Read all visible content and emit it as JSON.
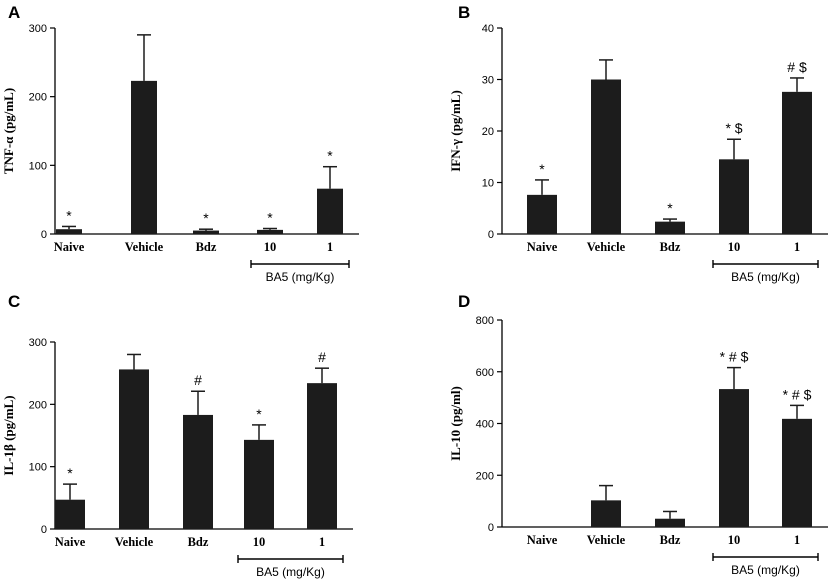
{
  "chart_data": [
    {
      "panel": "A",
      "type": "bar",
      "ylabel": "TNF-α (pg/mL)",
      "ylim": [
        0,
        300
      ],
      "yticks": [
        0,
        100,
        200,
        300
      ],
      "categories": [
        "Naive",
        "Vehicle",
        "Bdz",
        "10",
        "1"
      ],
      "values": [
        7,
        223,
        5,
        6,
        66
      ],
      "errors": [
        4,
        67,
        2,
        2,
        32
      ],
      "annotations": [
        "*",
        "",
        "*",
        "*",
        "*"
      ],
      "group_label": "BA5 (mg/Kg)",
      "group_span": [
        3,
        4
      ]
    },
    {
      "panel": "B",
      "type": "bar",
      "ylabel": "IFN-γ (pg/mL)",
      "ylim": [
        0,
        40
      ],
      "yticks": [
        0,
        10,
        20,
        30,
        40
      ],
      "categories": [
        "Naive",
        "Vehicle",
        "Bdz",
        "10",
        "1"
      ],
      "values": [
        7.6,
        30,
        2.4,
        14.5,
        27.6
      ],
      "errors": [
        2.9,
        3.8,
        0.5,
        3.9,
        2.7
      ],
      "annotations": [
        "*",
        "",
        "*",
        "* $",
        "# $"
      ],
      "group_label": "BA5 (mg/Kg)",
      "group_span": [
        3,
        4
      ]
    },
    {
      "panel": "C",
      "type": "bar",
      "ylabel": "IL-1β (pg/mL)",
      "ylim": [
        0,
        300
      ],
      "yticks": [
        0,
        100,
        200,
        300
      ],
      "categories": [
        "Naive",
        "Vehicle",
        "Bdz",
        "10",
        "1"
      ],
      "values": [
        47,
        256,
        183,
        143,
        234
      ],
      "errors": [
        25,
        24,
        38,
        24,
        24
      ],
      "annotations": [
        "*",
        "",
        "#",
        "*",
        "#"
      ],
      "group_label": "BA5 (mg/Kg)",
      "group_span": [
        3,
        4
      ]
    },
    {
      "panel": "D",
      "type": "bar",
      "ylabel": "IL-10 (pg/ml)",
      "ylim": [
        0,
        800
      ],
      "yticks": [
        0,
        200,
        400,
        600,
        800
      ],
      "categories": [
        "Naive",
        "Vehicle",
        "Bdz",
        "10",
        "1"
      ],
      "values": [
        0,
        103,
        32,
        533,
        418
      ],
      "errors": [
        0,
        57,
        28,
        83,
        52
      ],
      "annotations": [
        "",
        "",
        "",
        "* # $",
        "* # $"
      ],
      "group_label": "BA5 (mg/Kg)",
      "group_span": [
        3,
        4
      ]
    }
  ]
}
